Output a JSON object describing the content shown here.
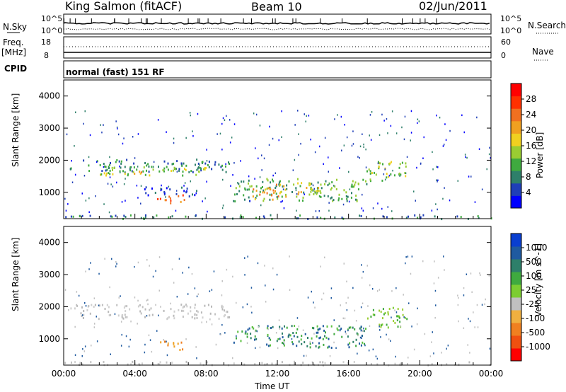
{
  "header": {
    "station": "King Salmon (fitACF)",
    "beam": "Beam 10",
    "date": "02/Jun/2011"
  },
  "param_panels": {
    "nsky_label": "N.Sky",
    "nsearch_label": "N.Search",
    "nsky_ticks": [
      "10^5",
      "10^0"
    ],
    "nsearch_ticks": [
      "10^5",
      "10^0"
    ],
    "freq_label": "Freq.",
    "freq_unit": "[MHz]",
    "freq_ticks": [
      "18",
      "8"
    ],
    "nave_label": "Nave",
    "nave_ticks": [
      "60",
      "0"
    ],
    "cpid_label": "CPID",
    "cpid_text": "normal (fast) 151 RF"
  },
  "chart_data": [
    {
      "type": "heatmap",
      "name": "power",
      "ylabel": "Slant Range [km]",
      "xlabel": "",
      "xlim": [
        0,
        24
      ],
      "ylim": [
        180,
        4500
      ],
      "yticks": [
        "1000",
        "2000",
        "3000",
        "4000"
      ],
      "colorbar": {
        "label": "Power [dB]",
        "ticks": [
          "4",
          "8",
          "12",
          "16",
          "20",
          "24",
          "28"
        ],
        "colors": [
          "#0000ff",
          "#1f3fb8",
          "#2e7f6a",
          "#3faa3f",
          "#9acd32",
          "#f0d020",
          "#f0a020",
          "#f07020",
          "#ff3000",
          "#ff0000"
        ]
      },
      "echo_regions": [
        {
          "t0": 0.3,
          "t1": 9.3,
          "r0": 1650,
          "r1": 2050,
          "level": 2
        },
        {
          "t0": 2.0,
          "t1": 8.0,
          "r0": 1550,
          "r1": 1850,
          "level": 4
        },
        {
          "t0": 3.7,
          "t1": 4.5,
          "r0": 1600,
          "r1": 1750,
          "level": 6
        },
        {
          "t0": 5.2,
          "t1": 6.8,
          "r0": 650,
          "r1": 950,
          "level": 7
        },
        {
          "t0": 4.5,
          "t1": 7.5,
          "r0": 900,
          "r1": 1200,
          "level": 1
        },
        {
          "t0": 9.5,
          "t1": 17.0,
          "r0": 750,
          "r1": 1450,
          "level": 3
        },
        {
          "t0": 10.5,
          "t1": 12.5,
          "r0": 800,
          "r1": 1300,
          "level": 6
        },
        {
          "t0": 13.0,
          "t1": 14.5,
          "r0": 850,
          "r1": 1350,
          "level": 5
        },
        {
          "t0": 17.0,
          "t1": 19.3,
          "r0": 1350,
          "r1": 2000,
          "level": 4
        },
        {
          "t0": 0.0,
          "t1": 24.0,
          "r0": 200,
          "r1": 320,
          "level": 2
        }
      ]
    },
    {
      "type": "heatmap",
      "name": "velocity",
      "ylabel": "Slant Range [km]",
      "xlabel": "Time UT",
      "xlim": [
        0,
        24
      ],
      "ylim": [
        180,
        4500
      ],
      "xticks": [
        "00:00",
        "04:00",
        "08:00",
        "12:00",
        "16:00",
        "20:00",
        "00:00"
      ],
      "yticks": [
        "1000",
        "2000",
        "3000",
        "4000"
      ],
      "colorbar": {
        "label": "Velocity [m s^-1]",
        "ticks": [
          "1000",
          "500",
          "100",
          "25",
          "-25",
          "-100",
          "-500",
          "-1000"
        ],
        "colors": [
          "#0a3fd0",
          "#1f5aa0",
          "#2e7f6a",
          "#3faa3f",
          "#7ccd32",
          "#c0c0c0",
          "#f0b040",
          "#f08020",
          "#f05010",
          "#ff0000"
        ]
      },
      "echo_regions": [
        {
          "t0": 0.3,
          "t1": 9.3,
          "r0": 1650,
          "r1": 2100,
          "tone": "ground"
        },
        {
          "t0": 5.2,
          "t1": 6.8,
          "r0": 650,
          "r1": 950,
          "tone": "orange"
        },
        {
          "t0": 9.5,
          "t1": 17.0,
          "r0": 750,
          "r1": 1450,
          "tone": "green"
        },
        {
          "t0": 17.0,
          "t1": 19.3,
          "r0": 1350,
          "r1": 2000,
          "tone": "lightgreen"
        },
        {
          "t0": 0.0,
          "t1": 24.0,
          "r0": 200,
          "r1": 320,
          "tone": "ground"
        }
      ]
    }
  ],
  "colors": {
    "axis": "#000000",
    "background": "#ffffff"
  }
}
